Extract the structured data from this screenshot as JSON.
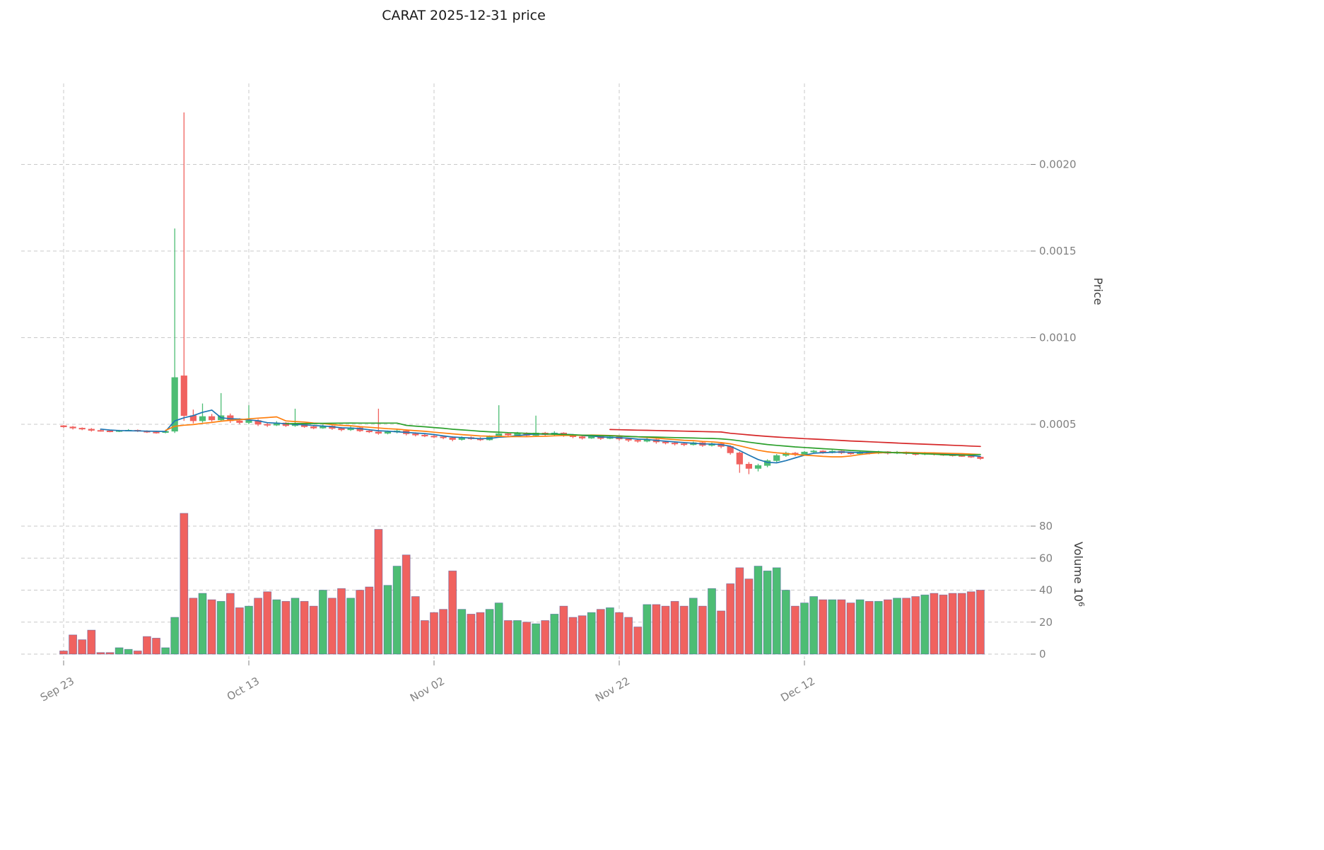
{
  "chart_data": {
    "type": "candlestick",
    "title": "CARAT  2025-12-31  price",
    "price_axis_label": "Price",
    "volume_axis_label_base": "Volume  10",
    "volume_axis_label_exp": "6",
    "price_unit": 0.0001,
    "volume_unit": 1000000,
    "price_ylim": [
      0.0001,
      0.00242
    ],
    "volume_ylim": [
      0,
      92
    ],
    "legend": "none",
    "grid": "dashed",
    "colors": {
      "up": "#4dbd74",
      "down": "#f0625f",
      "volume_edge": "#44549c",
      "grid": "#c9c9c9",
      "tick_text": "#808080"
    },
    "x_ticks": [
      {
        "i": 0,
        "label": "Sep 23"
      },
      {
        "i": 20,
        "label": "Oct 13"
      },
      {
        "i": 40,
        "label": "Nov 02"
      },
      {
        "i": 60,
        "label": "Nov 22"
      },
      {
        "i": 80,
        "label": "Dec 12"
      }
    ],
    "price_ticks": [
      {
        "v": 5,
        "label": "0.0005"
      },
      {
        "v": 10,
        "label": "0.0010"
      },
      {
        "v": 15,
        "label": "0.0015"
      },
      {
        "v": 20,
        "label": "0.0020"
      }
    ],
    "volume_ticks": [
      {
        "v": 0,
        "label": "0"
      },
      {
        "v": 20,
        "label": "20"
      },
      {
        "v": 40,
        "label": "40"
      },
      {
        "v": 60,
        "label": "60"
      },
      {
        "v": 80,
        "label": "80"
      }
    ],
    "moving_averages": [
      {
        "name": "sma-fast",
        "period": 5,
        "color": "#1f77b4"
      },
      {
        "name": "sma-medium",
        "period": 12,
        "color": "#ff7f0e"
      },
      {
        "name": "sma-slow",
        "period": 25,
        "color": "#2ca02c"
      },
      {
        "name": "sma-long",
        "period": 60,
        "color": "#d62728"
      }
    ],
    "candles_format": [
      "open",
      "high",
      "low",
      "close",
      "volume"
    ],
    "candles": [
      [
        4.92,
        4.95,
        4.8,
        4.85,
        2
      ],
      [
        4.85,
        4.9,
        4.7,
        4.78,
        12
      ],
      [
        4.78,
        4.82,
        4.66,
        4.72,
        9
      ],
      [
        4.72,
        4.78,
        4.58,
        4.65,
        15
      ],
      [
        4.65,
        4.7,
        4.58,
        4.62,
        1
      ],
      [
        4.62,
        4.66,
        4.54,
        4.58,
        1
      ],
      [
        4.58,
        4.68,
        4.55,
        4.64,
        4
      ],
      [
        4.64,
        4.72,
        4.6,
        4.66,
        3
      ],
      [
        4.66,
        4.7,
        4.56,
        4.6,
        2
      ],
      [
        4.6,
        4.65,
        4.5,
        4.55,
        11
      ],
      [
        4.55,
        4.6,
        4.46,
        4.52,
        10
      ],
      [
        4.52,
        4.64,
        4.48,
        4.6,
        4
      ],
      [
        4.6,
        16.3,
        4.5,
        7.7,
        23
      ],
      [
        7.8,
        23.0,
        5.2,
        5.5,
        88
      ],
      [
        5.5,
        5.85,
        5.05,
        5.2,
        35
      ],
      [
        5.2,
        6.2,
        5.1,
        5.45,
        38
      ],
      [
        5.45,
        5.6,
        5.15,
        5.25,
        34
      ],
      [
        5.25,
        6.8,
        5.2,
        5.5,
        33
      ],
      [
        5.5,
        5.62,
        5.08,
        5.2,
        38
      ],
      [
        5.2,
        5.35,
        5.0,
        5.1,
        29
      ],
      [
        5.1,
        6.1,
        5.0,
        5.22,
        30
      ],
      [
        5.22,
        5.3,
        4.9,
        5.0,
        35
      ],
      [
        5.0,
        5.12,
        4.85,
        4.95,
        39
      ],
      [
        4.95,
        5.18,
        4.9,
        5.08,
        34
      ],
      [
        5.08,
        5.12,
        4.85,
        4.92,
        33
      ],
      [
        4.92,
        5.9,
        4.86,
        5.02,
        35
      ],
      [
        5.02,
        5.08,
        4.8,
        4.86,
        33
      ],
      [
        4.86,
        4.96,
        4.72,
        4.78,
        30
      ],
      [
        4.78,
        4.98,
        4.74,
        4.9,
        40
      ],
      [
        4.9,
        4.94,
        4.68,
        4.76,
        35
      ],
      [
        4.76,
        4.84,
        4.6,
        4.68,
        41
      ],
      [
        4.68,
        4.88,
        4.62,
        4.8,
        35
      ],
      [
        4.8,
        4.84,
        4.56,
        4.62,
        40
      ],
      [
        4.62,
        4.72,
        4.5,
        4.56,
        42
      ],
      [
        4.56,
        5.9,
        4.4,
        4.48,
        78
      ],
      [
        4.48,
        4.64,
        4.42,
        4.56,
        43
      ],
      [
        4.56,
        4.7,
        4.48,
        4.62,
        55
      ],
      [
        4.62,
        4.66,
        4.36,
        4.45,
        62
      ],
      [
        4.45,
        4.54,
        4.3,
        4.38,
        36
      ],
      [
        4.38,
        4.46,
        4.26,
        4.32,
        21
      ],
      [
        4.32,
        4.42,
        4.2,
        4.28,
        26
      ],
      [
        4.28,
        4.36,
        4.14,
        4.22,
        28
      ],
      [
        4.22,
        4.3,
        4.02,
        4.12,
        52
      ],
      [
        4.12,
        4.3,
        4.06,
        4.24,
        28
      ],
      [
        4.24,
        4.3,
        4.1,
        4.16,
        25
      ],
      [
        4.16,
        4.26,
        4.04,
        4.1,
        26
      ],
      [
        4.1,
        4.36,
        4.06,
        4.3,
        28
      ],
      [
        4.3,
        6.1,
        4.24,
        4.46,
        32
      ],
      [
        4.46,
        4.52,
        4.3,
        4.38,
        21
      ],
      [
        4.38,
        4.56,
        4.32,
        4.5,
        21
      ],
      [
        4.5,
        4.54,
        4.3,
        4.36,
        20
      ],
      [
        4.36,
        5.5,
        4.3,
        4.5,
        19
      ],
      [
        4.5,
        4.56,
        4.32,
        4.4,
        21
      ],
      [
        4.4,
        4.6,
        4.34,
        4.5,
        25
      ],
      [
        4.5,
        4.54,
        4.28,
        4.35,
        30
      ],
      [
        4.35,
        4.44,
        4.2,
        4.28,
        23
      ],
      [
        4.28,
        4.36,
        4.12,
        4.2,
        24
      ],
      [
        4.2,
        4.4,
        4.16,
        4.32,
        26
      ],
      [
        4.32,
        4.36,
        4.1,
        4.18,
        28
      ],
      [
        4.18,
        4.34,
        4.14,
        4.28,
        29
      ],
      [
        4.28,
        4.32,
        4.06,
        4.15,
        26
      ],
      [
        4.15,
        4.22,
        3.98,
        4.08,
        23
      ],
      [
        4.08,
        4.16,
        3.94,
        4.02,
        17
      ],
      [
        4.02,
        4.2,
        3.96,
        4.12,
        31
      ],
      [
        4.12,
        4.16,
        3.88,
        3.98,
        31
      ],
      [
        3.98,
        4.06,
        3.84,
        3.92,
        30
      ],
      [
        3.92,
        4.0,
        3.78,
        3.88,
        33
      ],
      [
        3.88,
        3.96,
        3.74,
        3.82,
        30
      ],
      [
        3.82,
        4.0,
        3.78,
        3.94,
        35
      ],
      [
        3.94,
        3.98,
        3.7,
        3.78,
        30
      ],
      [
        3.78,
        3.94,
        3.72,
        3.88,
        41
      ],
      [
        3.88,
        3.92,
        3.62,
        3.72,
        27
      ],
      [
        3.72,
        3.78,
        3.25,
        3.35,
        44
      ],
      [
        3.35,
        3.42,
        2.2,
        2.7,
        54
      ],
      [
        2.7,
        2.82,
        2.12,
        2.45,
        47
      ],
      [
        2.45,
        2.72,
        2.28,
        2.62,
        55
      ],
      [
        2.62,
        2.98,
        2.52,
        2.9,
        52
      ],
      [
        2.9,
        3.28,
        2.82,
        3.2,
        54
      ],
      [
        3.2,
        3.42,
        3.12,
        3.34,
        40
      ],
      [
        3.34,
        3.4,
        3.16,
        3.25,
        30
      ],
      [
        3.25,
        3.46,
        3.2,
        3.4,
        32
      ],
      [
        3.4,
        3.52,
        3.32,
        3.46,
        36
      ],
      [
        3.46,
        3.5,
        3.3,
        3.36,
        34
      ],
      [
        3.36,
        3.52,
        3.32,
        3.45,
        34
      ],
      [
        3.45,
        3.48,
        3.28,
        3.35,
        34
      ],
      [
        3.35,
        3.42,
        3.24,
        3.3,
        32
      ],
      [
        3.3,
        3.46,
        3.26,
        3.4,
        34
      ],
      [
        3.4,
        3.44,
        3.26,
        3.33,
        33
      ],
      [
        3.33,
        3.47,
        3.28,
        3.42,
        33
      ],
      [
        3.42,
        3.45,
        3.26,
        3.33,
        34
      ],
      [
        3.33,
        3.46,
        3.28,
        3.4,
        35
      ],
      [
        3.4,
        3.43,
        3.24,
        3.31,
        35
      ],
      [
        3.31,
        3.38,
        3.2,
        3.27,
        36
      ],
      [
        3.27,
        3.4,
        3.22,
        3.34,
        37
      ],
      [
        3.34,
        3.38,
        3.2,
        3.27,
        38
      ],
      [
        3.27,
        3.34,
        3.18,
        3.24,
        37
      ],
      [
        3.24,
        3.3,
        3.14,
        3.2,
        38
      ],
      [
        3.2,
        3.28,
        3.12,
        3.16,
        38
      ],
      [
        3.16,
        3.24,
        3.06,
        3.11,
        39
      ],
      [
        3.11,
        3.16,
        2.95,
        3.02,
        40
      ]
    ]
  }
}
